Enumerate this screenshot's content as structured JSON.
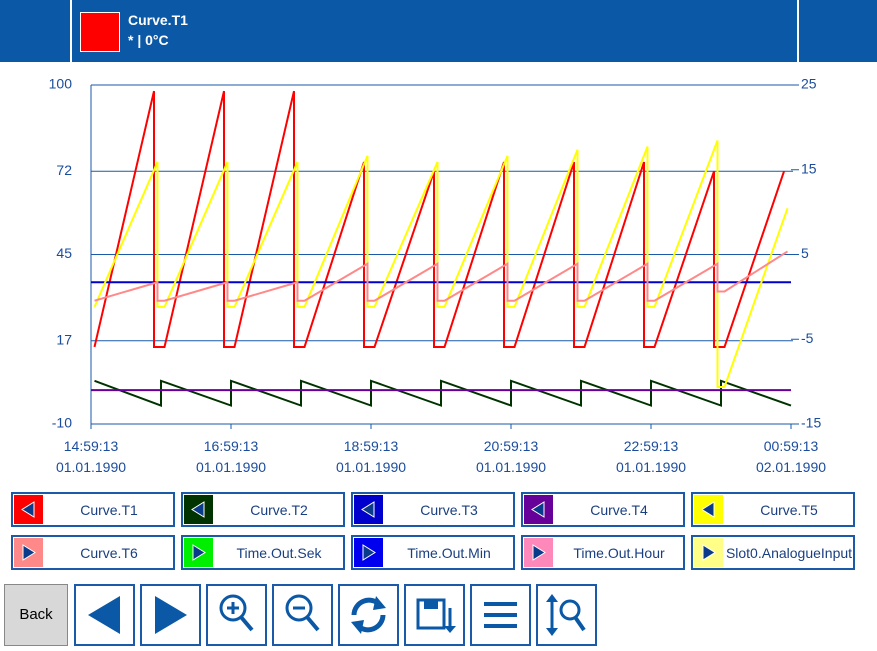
{
  "header": {
    "title": "Curve.T1",
    "subtitle": "* | 0°C",
    "color": "#ff0000"
  },
  "chart_data": {
    "type": "line",
    "xlim": [
      0,
      10
    ],
    "xticks": [
      {
        "value": 0,
        "label": "14:59:13\n01.01.1990"
      },
      {
        "value": 2,
        "label": "16:59:13\n01.01.1990"
      },
      {
        "value": 4,
        "label": "18:59:13\n01.01.1990"
      },
      {
        "value": 6,
        "label": "20:59:13\n01.01.1990"
      },
      {
        "value": 8,
        "label": "22:59:13\n01.01.1990"
      },
      {
        "value": 10,
        "label": "00:59:13\n02.01.1990"
      }
    ],
    "ylim": [
      -10,
      100
    ],
    "yticks": [
      -10,
      17,
      45,
      72,
      100
    ],
    "y2lim": [
      -15,
      25
    ],
    "y2ticks": [
      -15,
      -5,
      5,
      15,
      25
    ],
    "grid": true,
    "series": [
      {
        "name": "Curve.T1",
        "color": "#ff0000",
        "x": [
          0.05,
          0.9,
          0.9,
          1.05,
          1.9,
          1.9,
          2.05,
          2.9,
          2.9,
          3.05,
          3.9,
          3.9,
          4.05,
          4.9,
          4.9,
          5.05,
          5.9,
          5.9,
          6.05,
          6.9,
          6.9,
          7.05,
          7.9,
          7.9,
          8.05,
          8.9,
          8.9,
          9.05,
          9.9
        ],
        "values": [
          15,
          98,
          15,
          15,
          98,
          15,
          15,
          98,
          15,
          15,
          75,
          15,
          15,
          72,
          15,
          15,
          75,
          15,
          15,
          75,
          15,
          15,
          75,
          15,
          15,
          72,
          15,
          15,
          72
        ]
      },
      {
        "name": "Curve.T2",
        "color": "#003300",
        "x": [
          0.05,
          1,
          1,
          2,
          2,
          3,
          3,
          4,
          4,
          5,
          5,
          6,
          6,
          7,
          7,
          8,
          8,
          9,
          9,
          10
        ],
        "values": [
          4,
          -4,
          4,
          -4,
          4,
          -4,
          4,
          -4,
          4,
          -4,
          4,
          -4,
          4,
          -4,
          4,
          -4,
          4,
          -4,
          4,
          -4
        ]
      },
      {
        "name": "Curve.T3",
        "color": "#0000cc",
        "x": [
          0,
          10
        ],
        "values": [
          36,
          36
        ]
      },
      {
        "name": "Curve.T4",
        "color": "#660099",
        "x": [
          0,
          10
        ],
        "values": [
          1,
          1
        ]
      },
      {
        "name": "Curve.T5",
        "color": "#ffff00",
        "x": [
          0.05,
          0.95,
          0.95,
          1.05,
          1.95,
          1.95,
          2.05,
          2.95,
          2.95,
          3.05,
          3.95,
          3.95,
          4.05,
          4.95,
          4.95,
          5.05,
          5.95,
          5.95,
          6.05,
          6.95,
          6.95,
          7.05,
          7.95,
          7.95,
          8.05,
          8.95,
          8.95,
          9.05,
          9.95
        ],
        "values": [
          28,
          75,
          28,
          28,
          75,
          28,
          28,
          75,
          28,
          28,
          77,
          28,
          28,
          75,
          28,
          28,
          77,
          28,
          28,
          79,
          28,
          28,
          80,
          28,
          28,
          82,
          2,
          2,
          60
        ]
      },
      {
        "name": "Curve.T6",
        "color": "#ff8888",
        "x": [
          0.05,
          0.95,
          0.95,
          1.05,
          1.95,
          1.95,
          2.05,
          2.95,
          2.95,
          3.05,
          3.95,
          3.95,
          4.05,
          4.95,
          4.95,
          5.05,
          5.95,
          5.95,
          6.05,
          6.95,
          6.95,
          7.05,
          7.95,
          7.95,
          8.05,
          8.95,
          8.95,
          9.05,
          9.95
        ],
        "values": [
          30,
          36,
          30,
          30,
          36,
          30,
          30,
          36,
          30,
          30,
          42,
          30,
          30,
          42,
          30,
          30,
          42,
          30,
          30,
          42,
          30,
          30,
          42,
          30,
          30,
          42,
          33,
          33,
          46
        ]
      }
    ]
  },
  "other_channels": [
    {
      "name": "Time.Out.Sek",
      "color": "#00ee00"
    },
    {
      "name": "Time.Out.Min",
      "color": "#0000ee"
    },
    {
      "name": "Time.Out.Hour",
      "color": "#ff88bb"
    },
    {
      "name": "Slot0.AnalogueInput",
      "color": "#ffff88"
    }
  ],
  "toolbar": {
    "back": "Back"
  }
}
